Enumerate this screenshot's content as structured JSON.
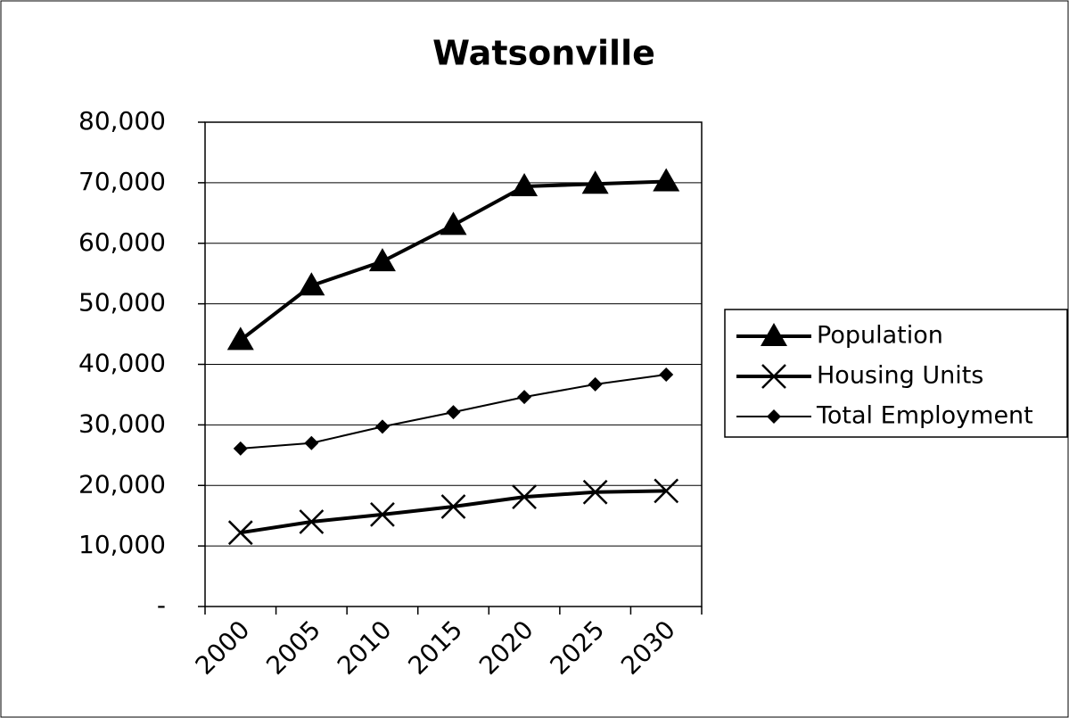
{
  "chart_data": {
    "type": "line",
    "title": "Watsonville",
    "categories": [
      "2000",
      "2005",
      "2010",
      "2015",
      "2020",
      "2025",
      "2030"
    ],
    "series": [
      {
        "name": "Population",
        "color": "#000000",
        "marker": "triangle",
        "values": [
          44000,
          53000,
          57000,
          63000,
          69400,
          69800,
          70200
        ]
      },
      {
        "name": "Housing Units",
        "color": "#000000",
        "marker": "x",
        "values": [
          12200,
          14000,
          15200,
          16500,
          18100,
          18900,
          19100
        ]
      },
      {
        "name": "Total Employment",
        "color": "#000000",
        "marker": "diamond",
        "values": [
          26100,
          27000,
          29700,
          32100,
          34600,
          36700,
          38300
        ]
      }
    ],
    "ylim": [
      0,
      80000
    ],
    "yticks": [
      {
        "value": 0,
        "label": "-"
      },
      {
        "value": 10000,
        "label": "10,000"
      },
      {
        "value": 20000,
        "label": "20,000"
      },
      {
        "value": 30000,
        "label": "30,000"
      },
      {
        "value": 40000,
        "label": "40,000"
      },
      {
        "value": 50000,
        "label": "50,000"
      },
      {
        "value": 60000,
        "label": "60,000"
      },
      {
        "value": 70000,
        "label": "70,000"
      },
      {
        "value": 80000,
        "label": "80,000"
      }
    ],
    "grid": true,
    "legend": "right"
  }
}
